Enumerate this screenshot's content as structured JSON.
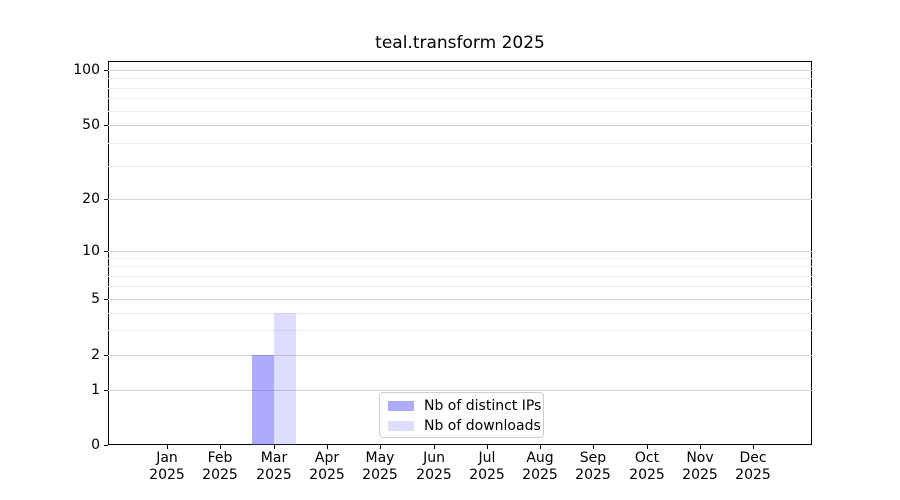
{
  "chart_data": {
    "type": "bar",
    "title": "teal.transform 2025",
    "x_categories": [
      "Jan",
      "Feb",
      "Mar",
      "Apr",
      "May",
      "Jun",
      "Jul",
      "Aug",
      "Sep",
      "Oct",
      "Nov",
      "Dec"
    ],
    "x_year": "2025",
    "series": [
      {
        "name": "Nb of distinct IPs",
        "color": "rgba(85,85,245,0.49)",
        "values": [
          0,
          0,
          2,
          0,
          0,
          0,
          0,
          0,
          0,
          0,
          0,
          0
        ]
      },
      {
        "name": "Nb of downloads",
        "color": "rgba(85,85,245,0.20)",
        "values": [
          0,
          0,
          4,
          0,
          0,
          0,
          0,
          0,
          0,
          0,
          0,
          0
        ]
      }
    ],
    "y_axis": {
      "scale": "symlog",
      "major_ticks": [
        0,
        1,
        2,
        5,
        10,
        20,
        50,
        100
      ],
      "minor_gridline_values": [
        3,
        4,
        6,
        7,
        8,
        9,
        30,
        40,
        60,
        70,
        80,
        90
      ]
    },
    "grid": {
      "horizontal": true,
      "vertical": false,
      "major_color": "#d4d4d4",
      "minor_color": "#ededed"
    },
    "legend": {
      "position": "lower center inside plot",
      "border_color": "#cccccc"
    }
  }
}
